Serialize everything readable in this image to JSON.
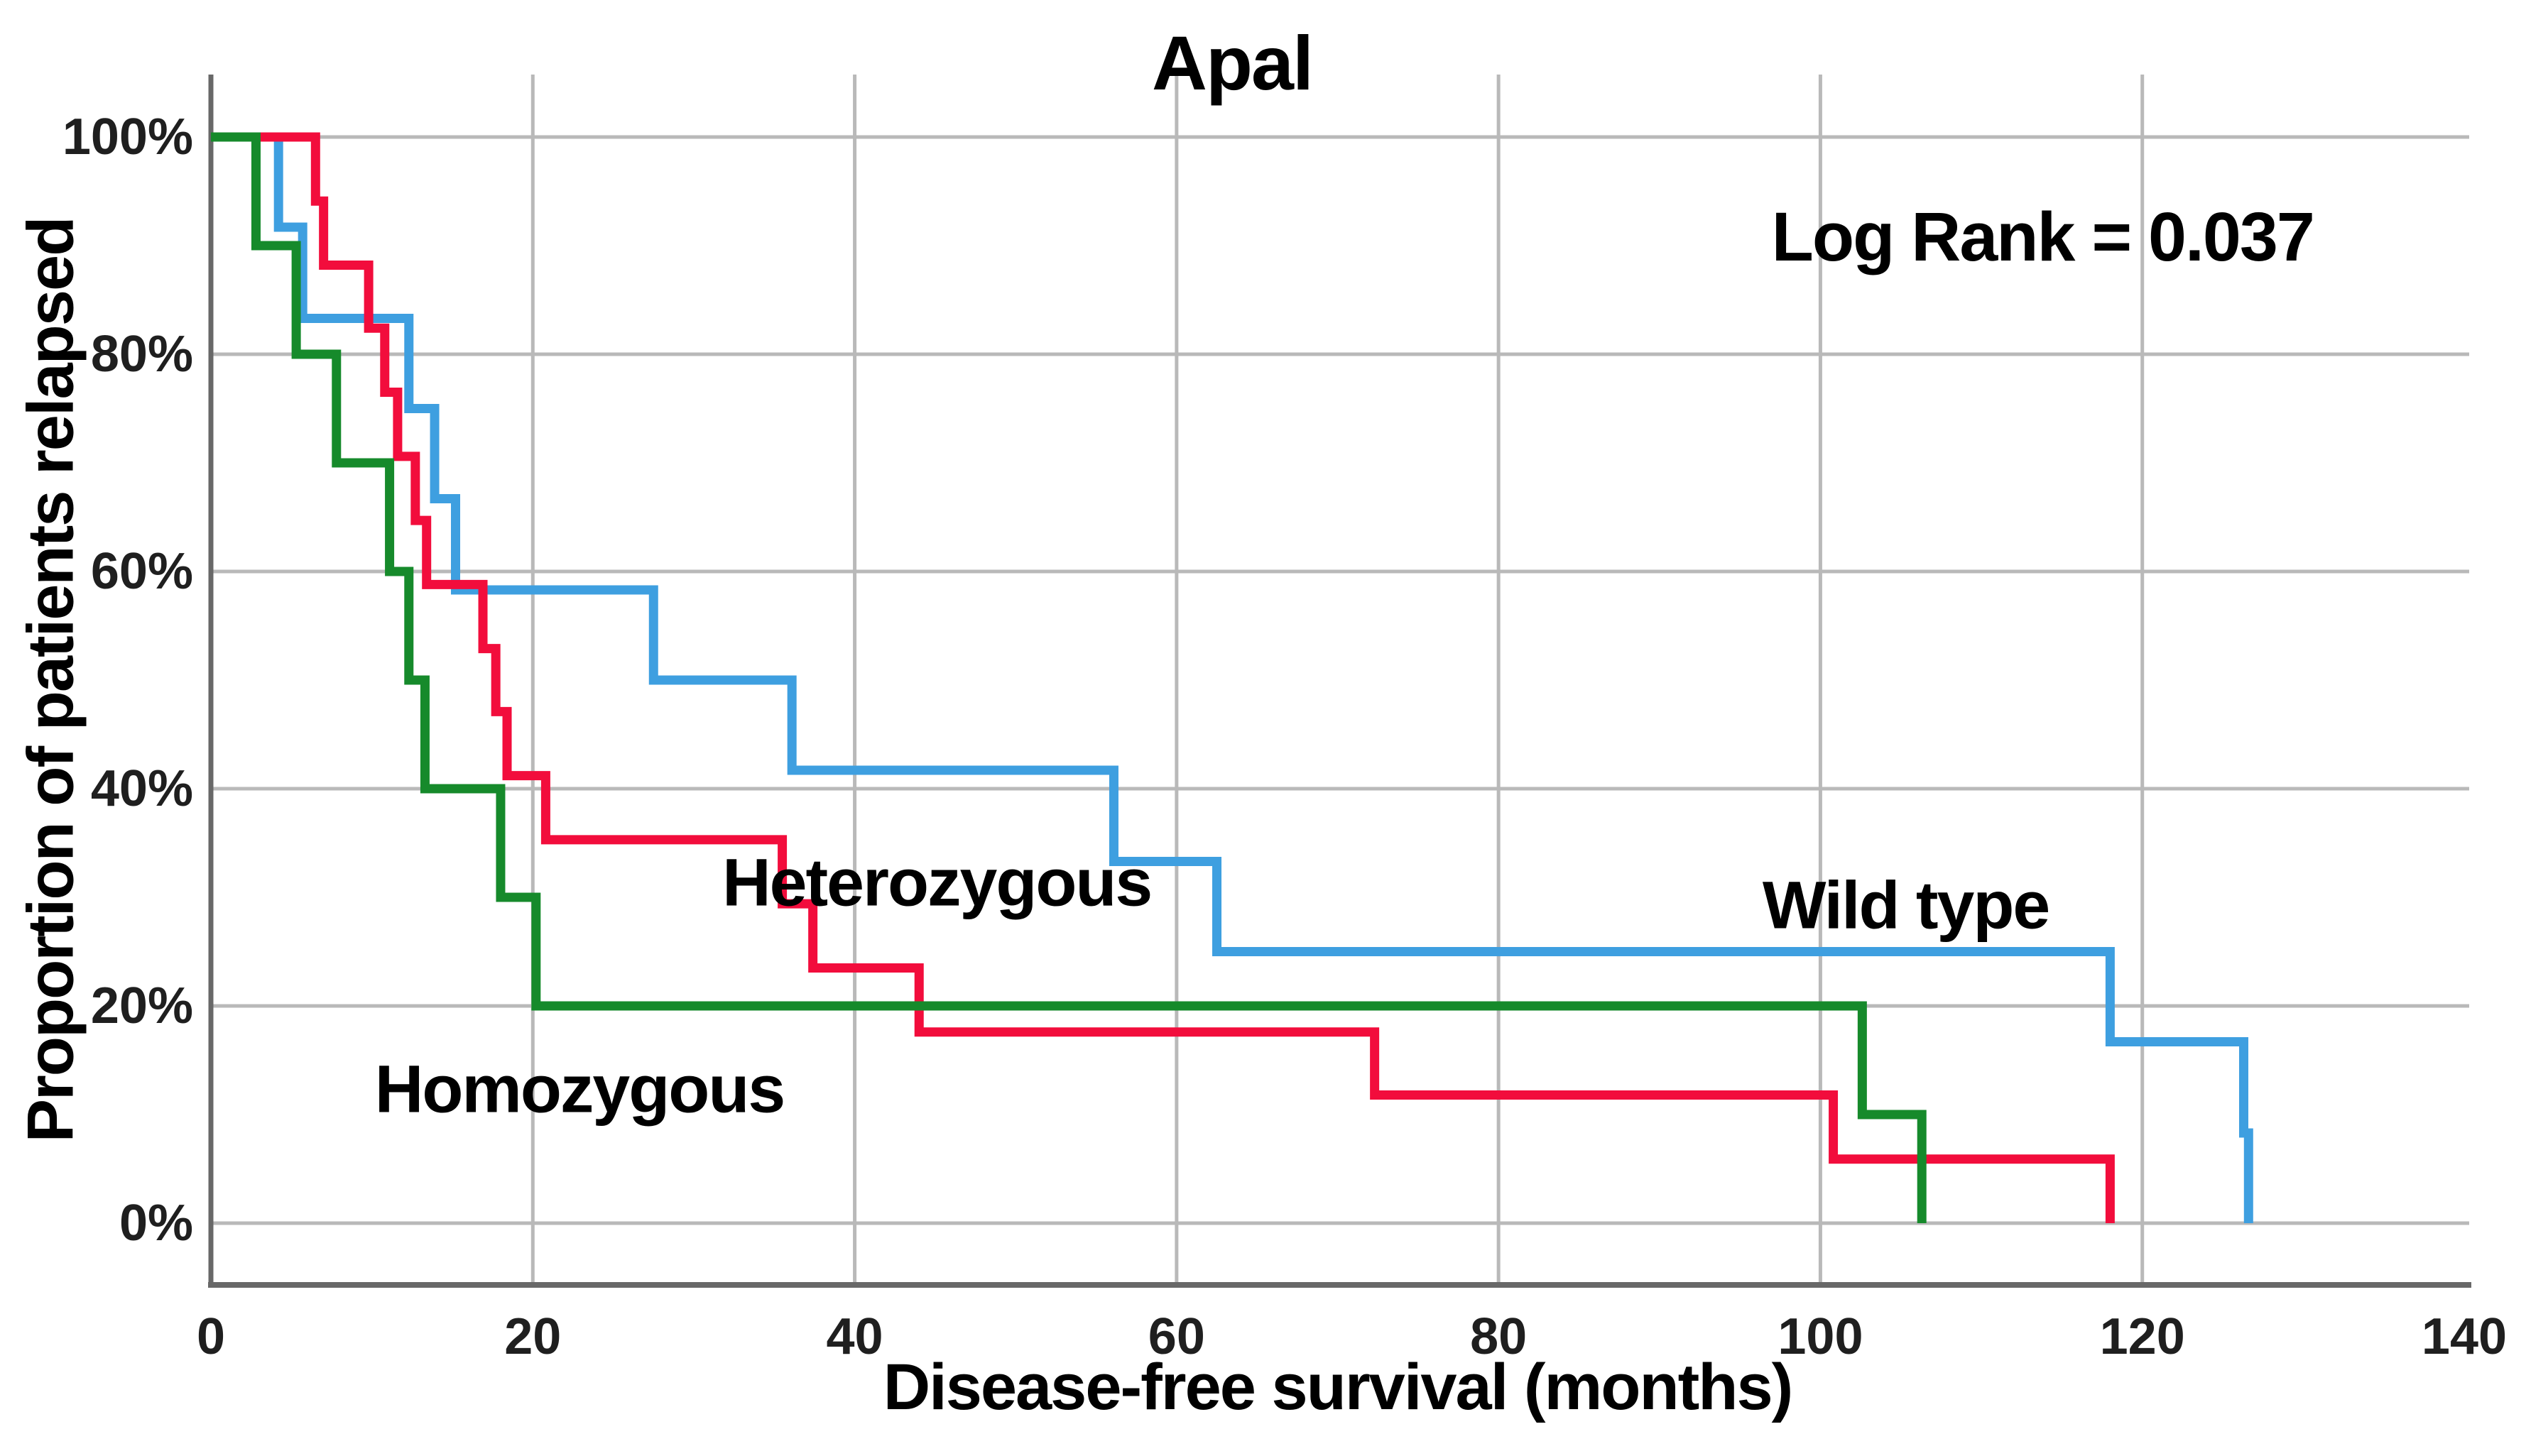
{
  "chart_data": {
    "type": "line",
    "subtype": "kaplan-meier-step",
    "title": "Apal",
    "xlabel": "Disease-free survival (months)",
    "ylabel": "Proportion of patients relapsed",
    "xlim": [
      0,
      140
    ],
    "ylim": [
      0,
      100
    ],
    "grid": true,
    "legend_position": "inline-labels",
    "x_tick_values": [
      0,
      20,
      40,
      60,
      80,
      100,
      120,
      140
    ],
    "x_tick_labels": [
      "0",
      "20",
      "40",
      "60",
      "80",
      "100",
      "120",
      "140"
    ],
    "x_gridline_values": [
      20,
      40,
      60,
      80,
      100,
      120
    ],
    "y_tick_values": [
      0,
      20,
      40,
      60,
      80,
      100
    ],
    "y_tick_labels": [
      "0%",
      "20%",
      "40%",
      "60%",
      "80%",
      "100%"
    ],
    "colors": {
      "grid": "#b9b9b9",
      "axis_frame": "#686868",
      "tick_text": "#1f1f1f",
      "wild_type": "#3E9FE0",
      "heterozygous": "#F20D3C",
      "homozygous": "#168A2B"
    },
    "annotations": [
      {
        "id": "log-rank",
        "text": "Log Rank = 0.037",
        "x": 113.8,
        "y": 90.8
      }
    ],
    "series": [
      {
        "name": "Wild type",
        "color": "#3E9FE0",
        "label": {
          "text": "Wild type",
          "x": 105.3,
          "y": 29.2
        },
        "points": [
          [
            0,
            100
          ],
          [
            4.2,
            91.7
          ],
          [
            5.7,
            83.3
          ],
          [
            12.3,
            75
          ],
          [
            13.9,
            66.7
          ],
          [
            15.2,
            58.3
          ],
          [
            27.5,
            50
          ],
          [
            36.1,
            41.7
          ],
          [
            56.1,
            33.3
          ],
          [
            62.5,
            25
          ],
          [
            118,
            16.7
          ],
          [
            126.3,
            8.3
          ],
          [
            126.6,
            0
          ]
        ]
      },
      {
        "name": "Heterozygous",
        "color": "#F20D3C",
        "label": {
          "text": "Heterozygous",
          "x": 45.1,
          "y": 31.3
        },
        "points": [
          [
            0,
            100
          ],
          [
            6.5,
            94.1
          ],
          [
            7,
            88.2
          ],
          [
            9.8,
            82.4
          ],
          [
            10.8,
            76.5
          ],
          [
            11.6,
            70.6
          ],
          [
            12.7,
            64.7
          ],
          [
            13.4,
            58.8
          ],
          [
            16.9,
            52.9
          ],
          [
            17.7,
            47.1
          ],
          [
            18.4,
            41.2
          ],
          [
            20.8,
            35.3
          ],
          [
            35.5,
            29.4
          ],
          [
            37.4,
            23.5
          ],
          [
            44,
            17.6
          ],
          [
            72.3,
            11.8
          ],
          [
            100.8,
            5.9
          ],
          [
            118,
            0
          ]
        ]
      },
      {
        "name": "Homozygous",
        "color": "#168A2B",
        "label": {
          "text": "Homozygous",
          "x": 22.9,
          "y": 12.3
        },
        "points": [
          [
            0,
            100
          ],
          [
            2.8,
            90
          ],
          [
            5.3,
            80
          ],
          [
            7.8,
            70
          ],
          [
            11.1,
            60
          ],
          [
            12.3,
            50
          ],
          [
            13.3,
            40
          ],
          [
            18,
            30
          ],
          [
            20.2,
            20
          ],
          [
            102.6,
            10
          ],
          [
            106.3,
            0
          ]
        ]
      }
    ]
  }
}
